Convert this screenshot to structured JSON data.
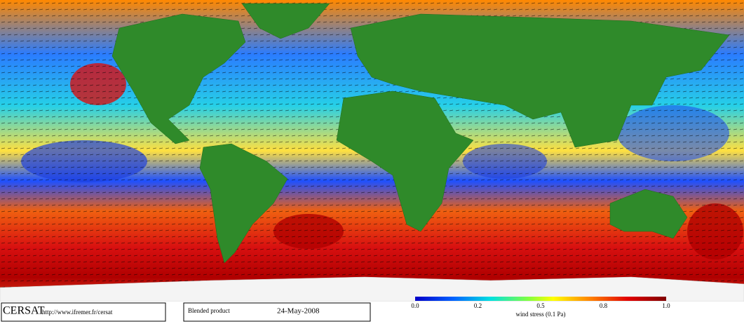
{
  "footer": {
    "logo": "CERSAT",
    "url": "http://www.ifremer.fr/cersat",
    "product": "Blended product",
    "date": "24-May-2008"
  },
  "colorbar": {
    "tick_labels": [
      "0.0",
      "0.2",
      "0.5",
      "0.8",
      "1.0"
    ],
    "label": "wind stress (0.1 Pa)"
  }
}
